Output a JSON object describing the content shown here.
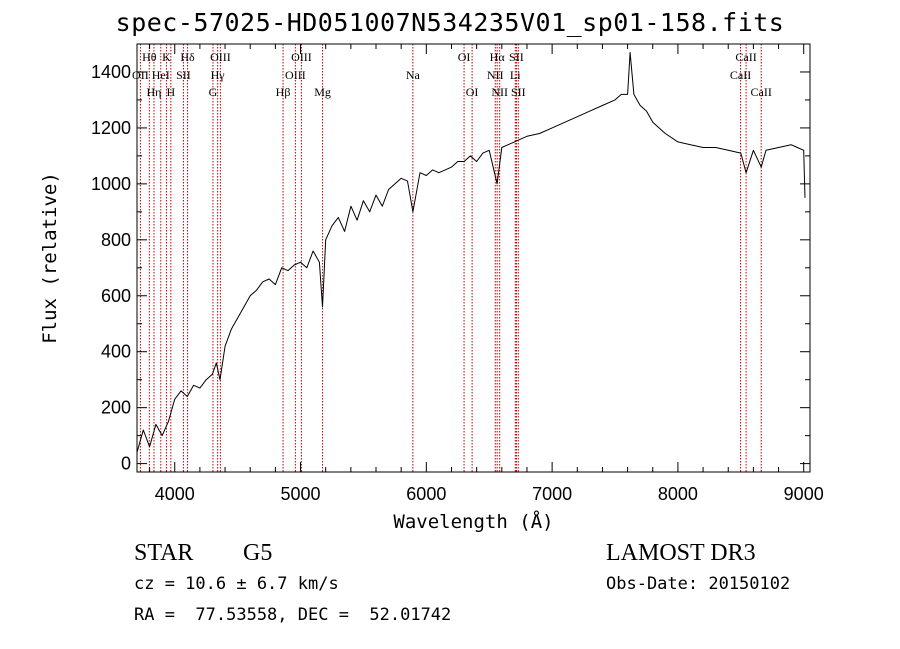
{
  "title": "spec-57025-HD051007N534235V01_sp01-158.fits",
  "chart_data": {
    "type": "line",
    "xlabel": "Wavelength (Å)",
    "ylabel": "Flux (relative)",
    "xlim": [
      3700,
      9050
    ],
    "ylim": [
      -30,
      1500
    ],
    "xticks": [
      4000,
      5000,
      6000,
      7000,
      8000,
      9000
    ],
    "yticks": [
      0,
      200,
      400,
      600,
      800,
      1000,
      1200,
      1400
    ],
    "line_color": "#000000",
    "marker_color": "#c00000",
    "series": [
      {
        "x": [
          3700,
          3750,
          3800,
          3850,
          3900,
          3950,
          4000,
          4050,
          4100,
          4150,
          4200,
          4250,
          4300,
          4330,
          4360,
          4400,
          4450,
          4500,
          4550,
          4600,
          4650,
          4700,
          4750,
          4800,
          4850,
          4900,
          4950,
          5000,
          5050,
          5100,
          5150,
          5175,
          5200,
          5250,
          5300,
          5350,
          5400,
          5450,
          5500,
          5550,
          5600,
          5650,
          5700,
          5750,
          5800,
          5850,
          5893,
          5950,
          6000,
          6050,
          6100,
          6150,
          6200,
          6250,
          6300,
          6350,
          6400,
          6450,
          6500,
          6563,
          6600,
          6650,
          6700,
          6750,
          6800,
          6900,
          7000,
          7100,
          7200,
          7300,
          7400,
          7500,
          7550,
          7600,
          7620,
          7650,
          7700,
          7750,
          7800,
          7850,
          7900,
          8000,
          8100,
          8200,
          8300,
          8400,
          8500,
          8542,
          8600,
          8662,
          8700,
          8800,
          8900,
          8950,
          9000,
          9010
        ],
        "y": [
          40,
          120,
          60,
          140,
          100,
          150,
          230,
          260,
          240,
          280,
          270,
          300,
          320,
          360,
          300,
          420,
          480,
          520,
          560,
          600,
          620,
          650,
          660,
          640,
          700,
          690,
          710,
          720,
          700,
          760,
          720,
          560,
          800,
          850,
          880,
          830,
          920,
          870,
          940,
          900,
          960,
          920,
          980,
          1000,
          1020,
          1010,
          900,
          1040,
          1030,
          1050,
          1040,
          1050,
          1060,
          1080,
          1080,
          1100,
          1080,
          1110,
          1120,
          1000,
          1130,
          1140,
          1150,
          1160,
          1170,
          1180,
          1200,
          1220,
          1240,
          1260,
          1280,
          1300,
          1320,
          1320,
          1470,
          1320,
          1280,
          1260,
          1220,
          1200,
          1180,
          1150,
          1140,
          1130,
          1130,
          1120,
          1110,
          1040,
          1120,
          1060,
          1120,
          1130,
          1140,
          1130,
          1120,
          950
        ]
      }
    ],
    "line_markers": [
      {
        "wl": 3727,
        "label": "OII",
        "row": 1
      },
      {
        "wl": 3798,
        "label": "Hθ",
        "row": 0
      },
      {
        "wl": 3835,
        "label": "Hη",
        "row": 2
      },
      {
        "wl": 3889,
        "label": "HeI",
        "row": 1
      },
      {
        "wl": 3934,
        "label": "K",
        "row": 0
      },
      {
        "wl": 3969,
        "label": "H",
        "row": 2
      },
      {
        "wl": 4069,
        "label": "SII",
        "row": 1
      },
      {
        "wl": 4102,
        "label": "Hδ",
        "row": 0
      },
      {
        "wl": 4304,
        "label": "G",
        "row": 2
      },
      {
        "wl": 4341,
        "label": "Hγ",
        "row": 1
      },
      {
        "wl": 4363,
        "label": "OIII",
        "row": 0
      },
      {
        "wl": 4861,
        "label": "Hβ",
        "row": 2
      },
      {
        "wl": 4959,
        "label": "OIII",
        "row": 1
      },
      {
        "wl": 5007,
        "label": "OIII",
        "row": 0
      },
      {
        "wl": 5175,
        "label": "Mg",
        "row": 2
      },
      {
        "wl": 5893,
        "label": "Na",
        "row": 1
      },
      {
        "wl": 6300,
        "label": "OI",
        "row": 0
      },
      {
        "wl": 6364,
        "label": "OI",
        "row": 2
      },
      {
        "wl": 6548,
        "label": "NII",
        "row": 1
      },
      {
        "wl": 6563,
        "label": "Hα",
        "row": 0
      },
      {
        "wl": 6583,
        "label": "NII",
        "row": 2
      },
      {
        "wl": 6707,
        "label": "Li",
        "row": 1
      },
      {
        "wl": 6716,
        "label": "SII",
        "row": 0
      },
      {
        "wl": 6731,
        "label": "SII",
        "row": 2
      },
      {
        "wl": 8498,
        "label": "CaII",
        "row": 1
      },
      {
        "wl": 8542,
        "label": "CaII",
        "row": 0
      },
      {
        "wl": 8662,
        "label": "CaII",
        "row": 2
      }
    ]
  },
  "info": {
    "obj_class": "STAR",
    "subclass": "G5",
    "survey": "LAMOST DR3",
    "cz": "cz = 10.6 ± 6.7 km/s",
    "obs_date": "Obs-Date: 20150102",
    "coords": "RA =  77.53558, DEC =  52.01742"
  }
}
